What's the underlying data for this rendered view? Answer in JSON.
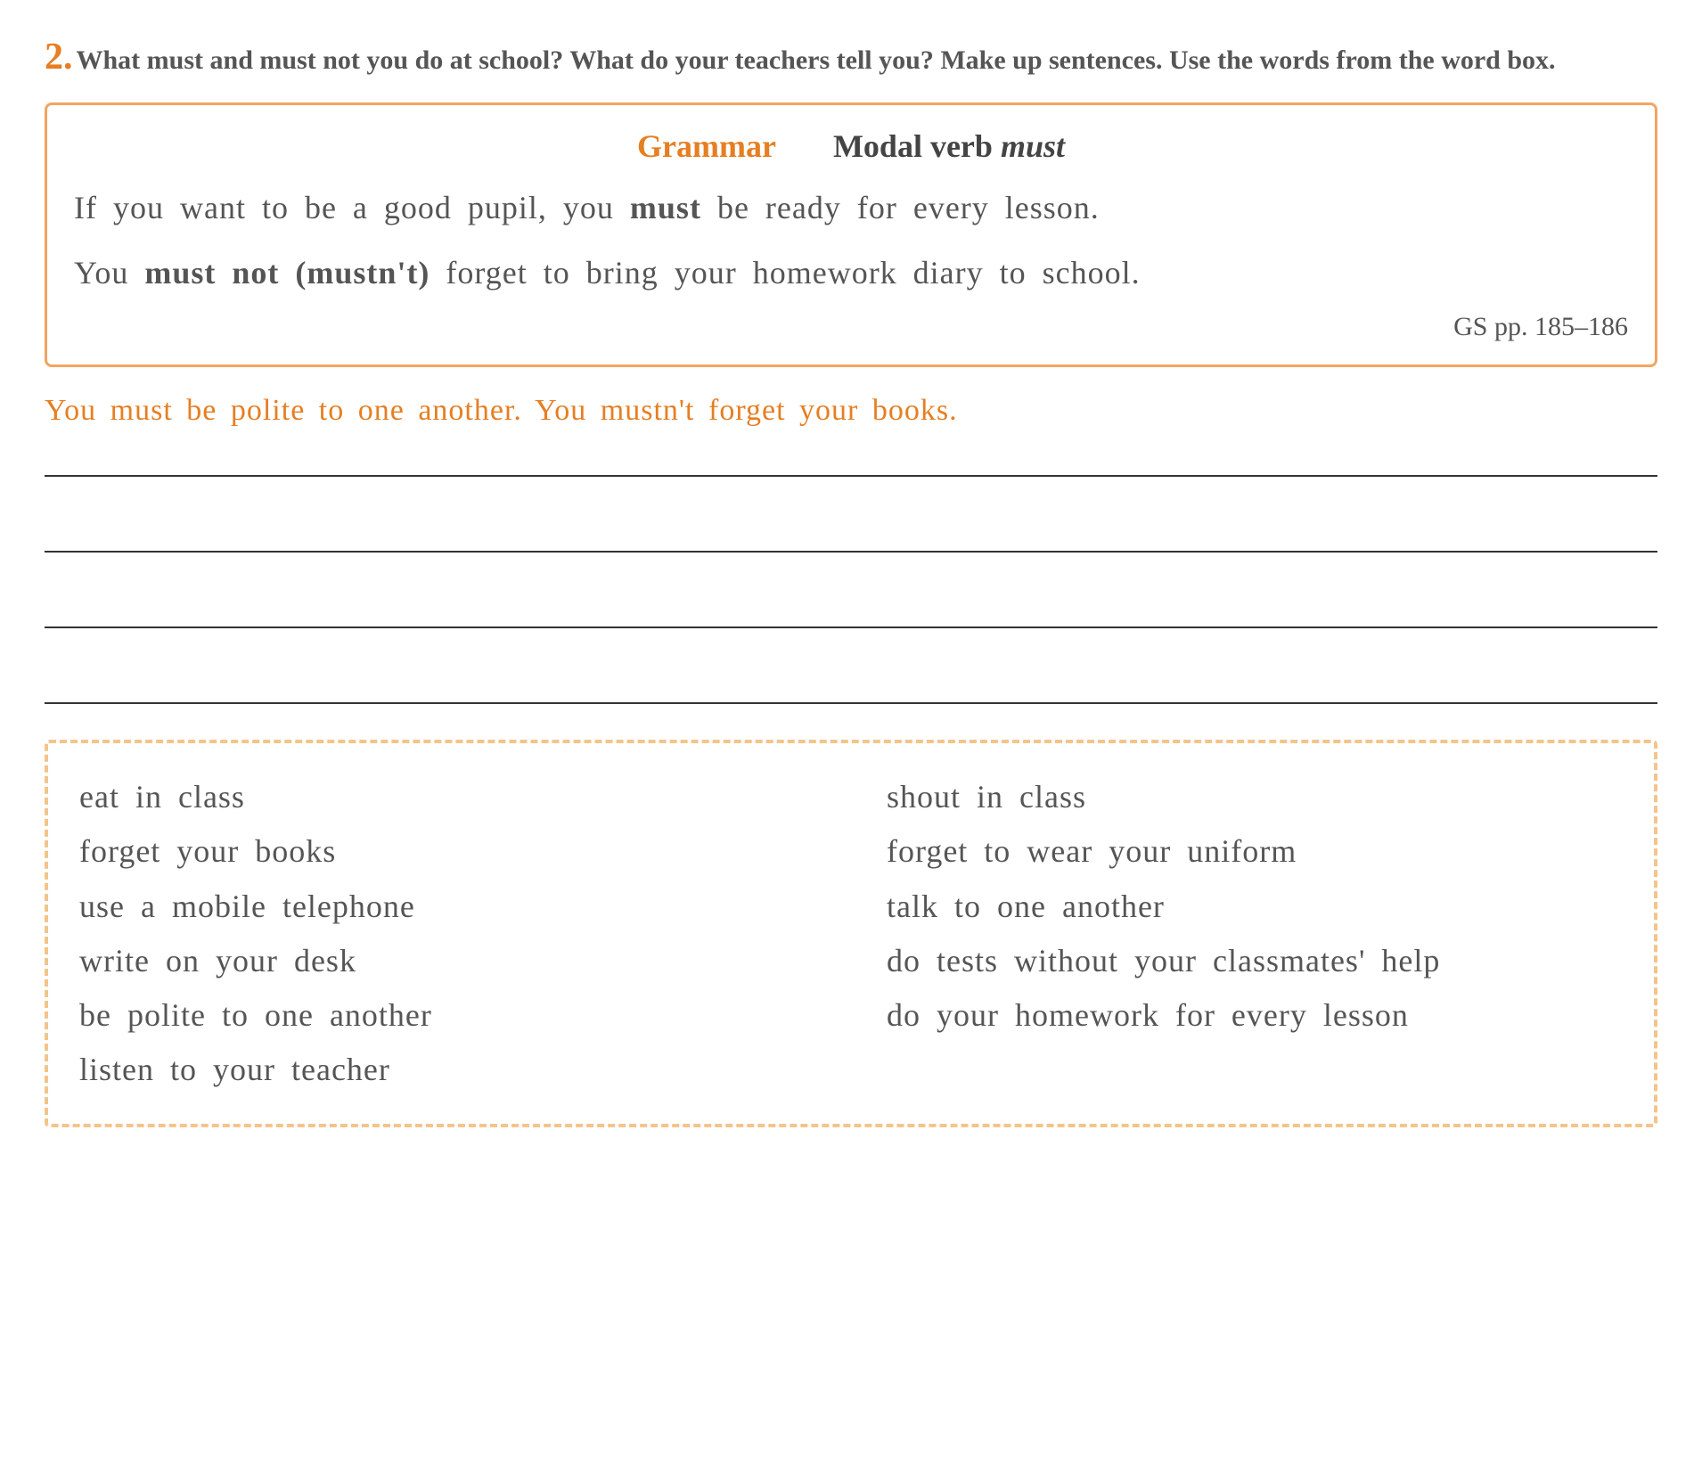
{
  "exercise": {
    "number": "2.",
    "instruction": "What must and must not you do at school? What do your teachers tell you? Make up sentences. Use the words from the word box."
  },
  "grammar_box": {
    "label": "Grammar",
    "topic_prefix": "Modal verb ",
    "topic_italic": "must",
    "example1_part1": "If you want to be a good pupil, you ",
    "example1_bold": "must",
    "example1_part2": " be ready for every lesson.",
    "example2_part1": "You ",
    "example2_bold": "must not (mustn't)",
    "example2_part2": " forget to bring your homework diary to school.",
    "reference": "GS pp. 185–186"
  },
  "example_answer": "You must be polite to one another. You mustn't forget your books.",
  "word_box": {
    "column1": [
      "eat in class",
      "forget your books",
      "use a mobile telephone",
      "write on your desk",
      "be polite to one another",
      "listen to your teacher"
    ],
    "column2": [
      "shout in class",
      "forget to wear your uniform",
      "talk to one another",
      "do tests without your classmates' help",
      "do your homework for every lesson"
    ]
  },
  "colors": {
    "accent": "#e67e22",
    "border_solid": "#f4a460",
    "border_dashed": "#f4c48a",
    "text_main": "#555555",
    "text_dark": "#444444",
    "line": "#333333",
    "background": "#ffffff"
  },
  "fonts": {
    "body_family": "Georgia, Times New Roman, serif",
    "handwriting_family": "Comic Sans MS, cursive",
    "exercise_number_size": 42,
    "instruction_size": 30,
    "grammar_header_size": 36,
    "grammar_example_size": 36,
    "reference_size": 30,
    "example_answer_size": 34,
    "word_item_size": 36
  }
}
